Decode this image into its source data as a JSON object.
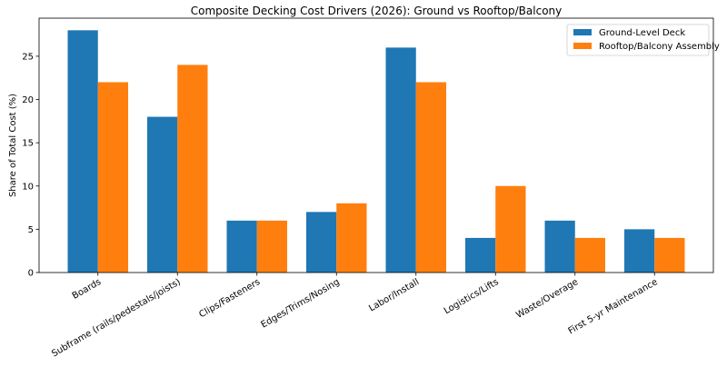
{
  "chart_data": {
    "type": "bar",
    "title": "Composite Decking Cost Drivers (2026): Ground vs Rooftop/Balcony",
    "xlabel": "",
    "ylabel": "Share of Total Cost (%)",
    "ylim": [
      0,
      29.4
    ],
    "yticks": [
      0,
      5,
      10,
      15,
      20,
      25
    ],
    "grid": false,
    "legend_position": "top-right",
    "categories": [
      "Boards",
      "Subframe (rails/pedestals/joists)",
      "Clips/Fasteners",
      "Edges/Trims/Nosing",
      "Labor/Install",
      "Logistics/Lifts",
      "Waste/Overage",
      "First 5-yr Maintenance"
    ],
    "series": [
      {
        "name": "Ground-Level Deck",
        "color": "#1f77b4",
        "values": [
          28,
          18,
          6,
          7,
          26,
          4,
          6,
          5
        ]
      },
      {
        "name": "Rooftop/Balcony Assembly",
        "color": "#ff7f0e",
        "values": [
          22,
          24,
          6,
          8,
          22,
          10,
          4,
          4
        ]
      }
    ]
  }
}
